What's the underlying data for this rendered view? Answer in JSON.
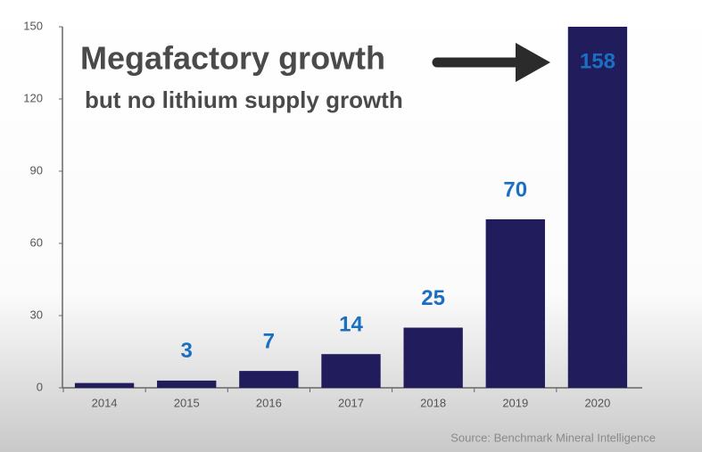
{
  "chart_data": {
    "type": "bar",
    "title": "Megafactory growth",
    "subtitle": "but no lithium supply growth",
    "source": "Source: Benchmark Mineral Intelligence",
    "categories": [
      "2014",
      "2015",
      "2016",
      "2017",
      "2018",
      "2019",
      "2020"
    ],
    "values": [
      2,
      3,
      7,
      14,
      25,
      70,
      158
    ],
    "value_labels": [
      null,
      "3",
      "7",
      "14",
      "25",
      "70",
      "158"
    ],
    "color": "#211c5c",
    "label_color": "#1b6fc2",
    "ylim": [
      0,
      150
    ],
    "yticks": [
      0,
      30,
      60,
      90,
      120,
      150
    ],
    "grid": false
  }
}
